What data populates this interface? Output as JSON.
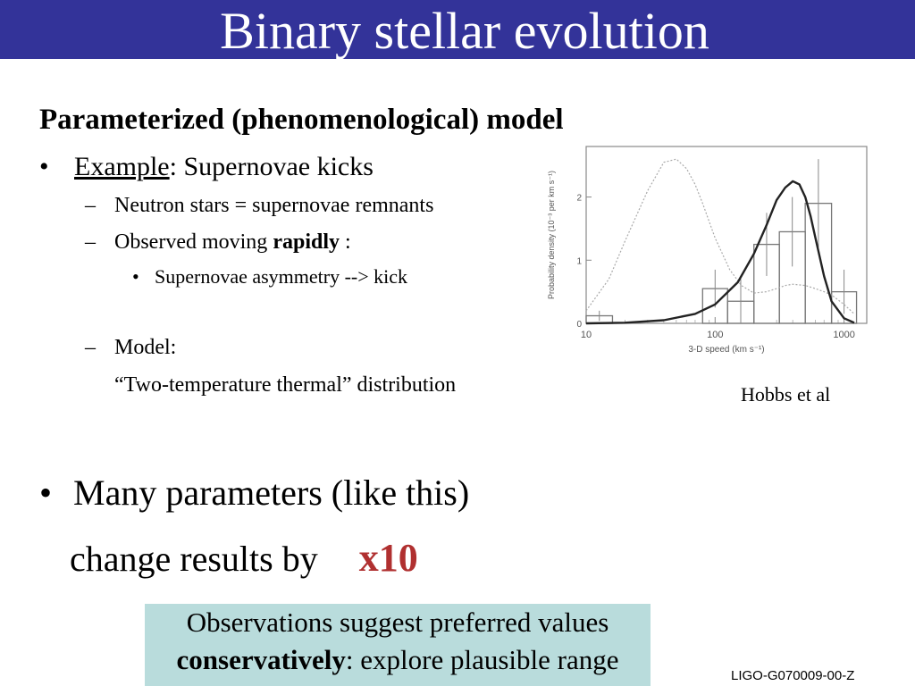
{
  "slide": {
    "title": "Binary stellar evolution",
    "heading": "Parameterized (phenomenological) model",
    "bullet1": {
      "marker": "•",
      "underlined": "Example",
      "rest": ": Supernovae kicks"
    },
    "sub1": {
      "marker": "–",
      "text": "Neutron stars = supernovae remnants"
    },
    "sub2": {
      "marker": "–",
      "text_before": "Observed moving ",
      "bold": "rapidly",
      "text_after": " :"
    },
    "subsub1": {
      "marker": "•",
      "text": "Supernovae asymmetry --> kick"
    },
    "sub3": {
      "marker": "–",
      "text": "Model:"
    },
    "sub3_line2": "“Two-temperature thermal” distribution",
    "bullet2": {
      "marker": "•",
      "text": "Many parameters (like this)"
    },
    "bullet2_line2": {
      "text": "change results by",
      "emphasis": "x10"
    },
    "box": {
      "line1": "Observations suggest preferred values",
      "bold": "conservatively",
      "rest": ": explore plausible range"
    },
    "caption": "Hobbs et al",
    "footer": "LIGO-G070009-00-Z",
    "colors": {
      "title_bar": "#333399",
      "emphasis": "#b03030",
      "box": "#b9dcdc"
    }
  },
  "chart_data": {
    "type": "bar",
    "xscale": "log",
    "xlim": [
      10,
      1500
    ],
    "ylim": [
      0,
      2.8
    ],
    "xlabel": "3-D speed (km s⁻¹)",
    "ylabel": "Probability density (10⁻³ per km s⁻¹)",
    "x_ticks": [
      "10",
      "100",
      "1000"
    ],
    "y_ticks": [
      "0",
      "1",
      "2"
    ],
    "histogram": [
      {
        "x0": 10,
        "x1": 16,
        "value": 0.12,
        "err": 0.08
      },
      {
        "x0": 80,
        "x1": 125,
        "value": 0.55,
        "err": 0.3
      },
      {
        "x0": 125,
        "x1": 200,
        "value": 0.35,
        "err": 0.35
      },
      {
        "x0": 200,
        "x1": 315,
        "value": 1.25,
        "err": 0.5
      },
      {
        "x0": 315,
        "x1": 500,
        "value": 1.45,
        "err": 0.55
      },
      {
        "x0": 500,
        "x1": 800,
        "value": 1.9,
        "err": 0.7
      },
      {
        "x0": 800,
        "x1": 1250,
        "value": 0.5,
        "err": 0.35
      }
    ],
    "fit_curve": {
      "x": [
        10,
        20,
        40,
        70,
        100,
        150,
        200,
        250,
        300,
        350,
        400,
        450,
        500,
        550,
        600,
        700,
        800,
        1000,
        1200
      ],
      "y": [
        0.0,
        0.01,
        0.05,
        0.15,
        0.3,
        0.65,
        1.1,
        1.55,
        1.95,
        2.15,
        2.25,
        2.2,
        2.0,
        1.7,
        1.35,
        0.75,
        0.35,
        0.08,
        0.01
      ]
    },
    "dotted_curve": {
      "x": [
        10,
        15,
        20,
        30,
        40,
        50,
        60,
        70,
        80,
        100,
        130,
        160,
        200,
        250,
        300,
        350,
        400,
        500,
        600,
        700,
        800,
        1000,
        1200
      ],
      "y": [
        0.2,
        0.7,
        1.3,
        2.1,
        2.55,
        2.6,
        2.45,
        2.2,
        1.9,
        1.35,
        0.85,
        0.6,
        0.48,
        0.5,
        0.55,
        0.6,
        0.62,
        0.6,
        0.55,
        0.5,
        0.45,
        0.3,
        0.15
      ]
    }
  }
}
